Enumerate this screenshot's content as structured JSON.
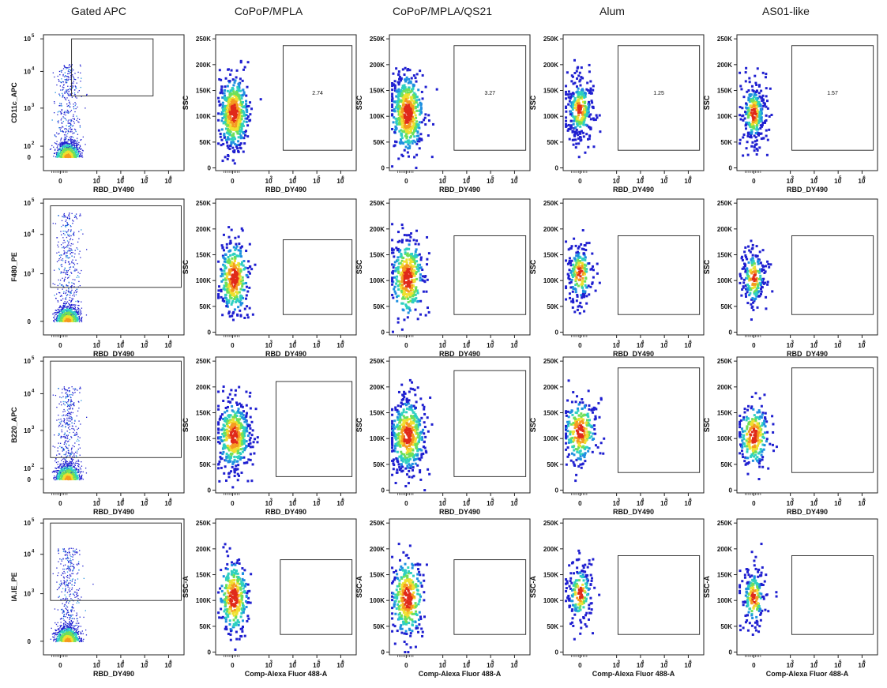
{
  "columns": [
    "Gated APC",
    "CoPoP/MPLA",
    "CoPoP/MPLA/QS21",
    "Alum",
    "AS01-like"
  ],
  "chart_data": {
    "type": "scatter",
    "description_type": "flow-cytometry-density-dot-plots",
    "density_colors": [
      "#1f1fd0",
      "#1e8fe0",
      "#2ed0c0",
      "#6ee05a",
      "#f0e030",
      "#f59a20",
      "#e02a1a"
    ],
    "log_x_ticks": [
      "0",
      "10^3",
      "10^4",
      "10^5",
      "10^6"
    ],
    "ssc_ticks": [
      "0",
      "50K",
      "100K",
      "150K",
      "200K",
      "250K"
    ],
    "rows": [
      {
        "marker_ylabel": "CD11c_APC",
        "marker_yticks": [
          "0",
          "10^2",
          "10^3",
          "10^4",
          "10^5"
        ],
        "xlabel": "RBD_DY490",
        "ssc_ylabel": "SSC",
        "panels": [
          {
            "column": "Gated APC",
            "ylabel": "CD11c_APC",
            "xlabel": "RBD_DY490",
            "gate_percent": ""
          },
          {
            "column": "CoPoP/MPLA",
            "ylabel": "SSC",
            "xlabel": "RBD_DY490",
            "gate_percent": "2.74"
          },
          {
            "column": "CoPoP/MPLA/QS21",
            "ylabel": "SSC",
            "xlabel": "RBD_DY490",
            "gate_percent": "3.27"
          },
          {
            "column": "Alum",
            "ylabel": "SSC",
            "xlabel": "RBD_DY490",
            "gate_percent": "1.25"
          },
          {
            "column": "AS01-like",
            "ylabel": "SSC",
            "xlabel": "RBD_DY490",
            "gate_percent": "1.57"
          }
        ]
      },
      {
        "marker_ylabel": "F480_PE",
        "marker_yticks": [
          "0",
          "10^3",
          "10^4",
          "10^5"
        ],
        "xlabel": "RBD_DY490",
        "panels": [
          {
            "column": "Gated APC",
            "ylabel": "F480_PE",
            "xlabel": "RBD_DY490",
            "gate_percent": ""
          },
          {
            "column": "CoPoP/MPLA",
            "ylabel": "SSC",
            "xlabel": "RBD_DY490",
            "gate_percent": ""
          },
          {
            "column": "CoPoP/MPLA/QS21",
            "ylabel": "SSC",
            "xlabel": "RBD_DY490",
            "gate_percent": ""
          },
          {
            "column": "Alum",
            "ylabel": "SSC",
            "xlabel": "RBD_DY490",
            "gate_percent": ""
          },
          {
            "column": "AS01-like",
            "ylabel": "SSC",
            "xlabel": "RBD_DY490",
            "gate_percent": ""
          }
        ]
      },
      {
        "marker_ylabel": "B220_APC",
        "marker_yticks": [
          "0",
          "10^2",
          "10^3",
          "10^4",
          "10^5"
        ],
        "xlabel": "RBD_DY490",
        "panels": [
          {
            "column": "Gated APC",
            "ylabel": "B220_APC",
            "xlabel": "RBD_DY490",
            "gate_percent": ""
          },
          {
            "column": "CoPoP/MPLA",
            "ylabel": "SSC",
            "xlabel": "RBD_DY490",
            "gate_percent": ""
          },
          {
            "column": "CoPoP/MPLA/QS21",
            "ylabel": "SSC",
            "xlabel": "RBD_DY490",
            "gate_percent": ""
          },
          {
            "column": "Alum",
            "ylabel": "SSC",
            "xlabel": "RBD_DY490",
            "gate_percent": ""
          },
          {
            "column": "AS01-like",
            "ylabel": "SSC",
            "xlabel": "RBD_DY490",
            "gate_percent": ""
          }
        ]
      },
      {
        "marker_ylabel": "IA.IE_PE",
        "marker_yticks": [
          "0",
          "10^3",
          "10^4",
          "10^5"
        ],
        "xlabel": "RBD_DY490",
        "panels": [
          {
            "column": "Gated APC",
            "ylabel": "IA.IE_PE",
            "xlabel": "RBD_DY490",
            "gate_percent": ""
          },
          {
            "column": "CoPoP/MPLA",
            "ylabel": "SSC-A",
            "xlabel": "Comp-Alexa Fluor 488-A",
            "gate_percent": ""
          },
          {
            "column": "CoPoP/MPLA/QS21",
            "ylabel": "SSC-A",
            "xlabel": "Comp-Alexa Fluor 488-A",
            "gate_percent": ""
          },
          {
            "column": "Alum",
            "ylabel": "SSC-A",
            "xlabel": "Comp-Alexa Fluor 488-A",
            "gate_percent": ""
          },
          {
            "column": "AS01-like",
            "ylabel": "SSC-A",
            "xlabel": "Comp-Alexa Fluor 488-A",
            "gate_percent": ""
          }
        ]
      }
    ]
  }
}
